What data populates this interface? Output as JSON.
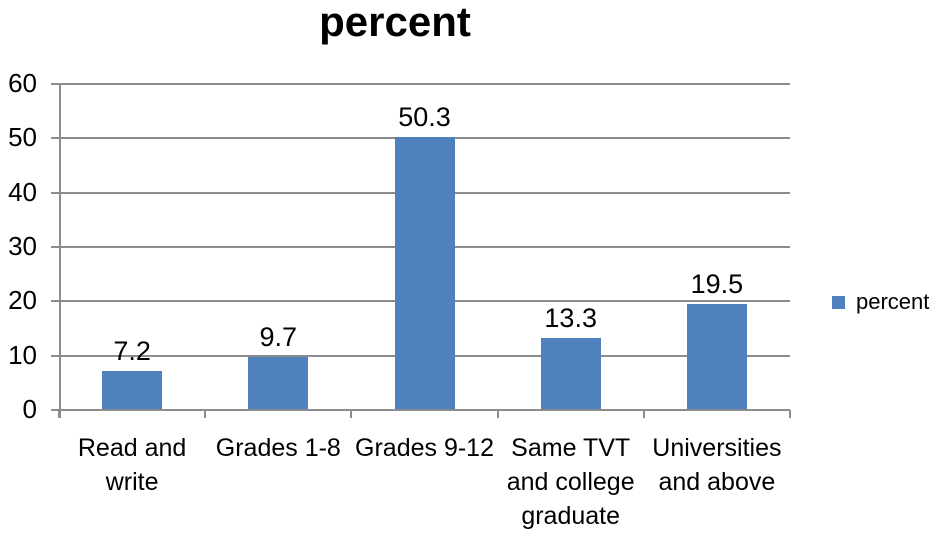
{
  "title": "percent",
  "chart_data": {
    "type": "bar",
    "title": "percent",
    "categories": [
      "Read and write",
      "Grades 1-8",
      "Grades 9-12",
      "Same TVT and college graduate",
      "Universities and above"
    ],
    "series": [
      {
        "name": "percent",
        "values": [
          7.2,
          9.7,
          50.3,
          13.3,
          19.5
        ]
      }
    ],
    "value_labels": [
      "7.2",
      "9.7",
      "50.3",
      "13.3",
      "19.5"
    ],
    "ylim": [
      0,
      60
    ],
    "yticks": [
      0,
      10,
      20,
      30,
      40,
      50,
      60
    ],
    "grid": "horizontal gridlines on",
    "legend": {
      "label": "percent",
      "position": "right"
    },
    "colors": {
      "bar": "#4F81BD",
      "gridline": "#8C8C8C",
      "axis": "#8C8C8C",
      "text": "#000000"
    }
  }
}
